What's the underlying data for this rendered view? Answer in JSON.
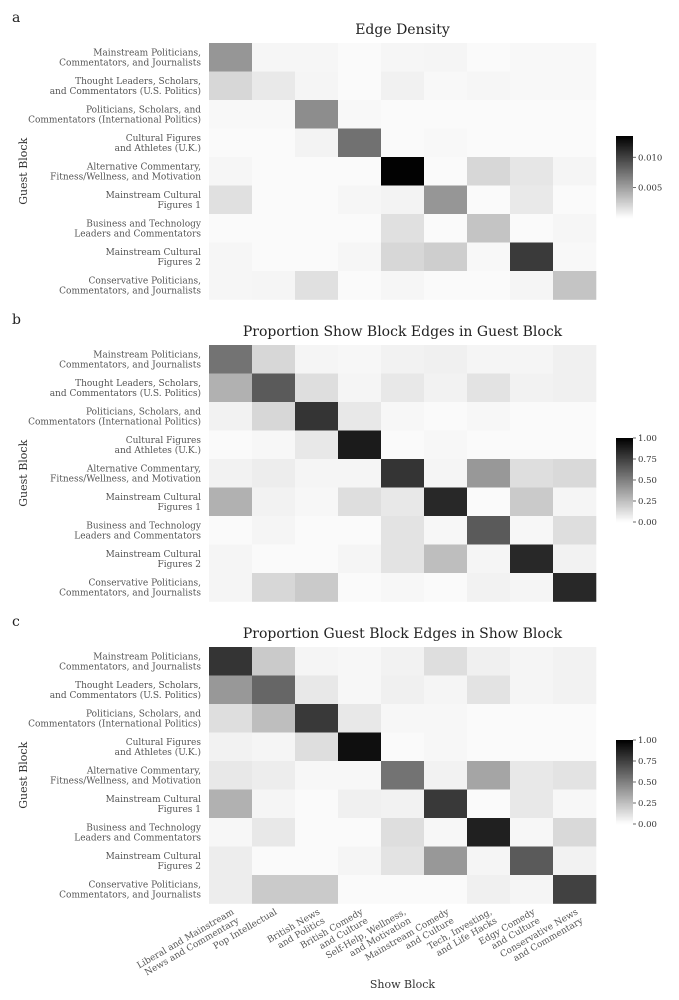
{
  "shared": {
    "row_labels": [
      [
        "Mainstream Politicians,",
        "Commentators, and Journalists"
      ],
      [
        "Thought Leaders, Scholars,",
        "and Commentators (U.S. Politics)"
      ],
      [
        "Politicians, Scholars, and",
        "Commentators (International Politics)"
      ],
      [
        "Cultural Figures",
        "and Athletes (U.K.)"
      ],
      [
        "Alternative Commentary,",
        "Fitness/Wellness, and Motivation"
      ],
      [
        "Mainstream Cultural",
        "Figures 1"
      ],
      [
        "Business and Technology",
        "Leaders and Commentators"
      ],
      [
        "Mainstream Cultural",
        "Figures 2"
      ],
      [
        "Conservative Politicians,",
        "Commentators, and Journalists"
      ]
    ],
    "col_labels": [
      [
        "Liberal and Mainstream",
        "News and Commentary"
      ],
      [
        "Pop Intellectual"
      ],
      [
        "British News",
        "and Politics"
      ],
      [
        "British Comedy",
        "and Culture"
      ],
      [
        "Self-Help, Wellness,",
        "and Motivation"
      ],
      [
        "Mainstream Comedy",
        "and Culture"
      ],
      [
        "Tech, Investing,",
        "and Life Hacks"
      ],
      [
        "Edgy Comedy",
        "and Culture"
      ],
      [
        "Conservative News",
        "and Commentary"
      ]
    ],
    "y_axis_title": "Guest Block",
    "x_axis_title": "Show Block"
  },
  "chart_data": [
    {
      "type": "heatmap",
      "panel": "a",
      "title": "Edge Density",
      "colorbar": {
        "min": 0,
        "max": 0.0135,
        "ticks": [
          "0.005",
          "0.010"
        ],
        "tick_values": [
          0.005,
          0.01
        ]
      },
      "values": [
        [
          0.0055,
          0.0003,
          0.0003,
          0.0001,
          0.0003,
          0.0004,
          0.0001,
          0.0002,
          0.0002
        ],
        [
          0.002,
          0.001,
          0.0004,
          0.0001,
          0.0006,
          0.0002,
          0.0003,
          0.0002,
          0.0002
        ],
        [
          0.0002,
          0.0002,
          0.006,
          0.0002,
          0.0001,
          0.0001,
          0.0001,
          0.0001,
          0.0001
        ],
        [
          0.0001,
          0.0001,
          0.0005,
          0.0075,
          0.0001,
          0.0002,
          0.0001,
          0.0001,
          0.0001
        ],
        [
          0.0003,
          0.0001,
          0.0001,
          0.0001,
          0.0135,
          0.0001,
          0.002,
          0.0012,
          0.0004
        ],
        [
          0.0015,
          0.0001,
          0.0001,
          0.0003,
          0.0005,
          0.0055,
          0.0001,
          0.001,
          0.0001
        ],
        [
          0.0001,
          0.0001,
          0.0001,
          0.0001,
          0.0015,
          0.0001,
          0.003,
          0.0001,
          0.0003
        ],
        [
          0.0003,
          0.0001,
          0.0001,
          0.0003,
          0.002,
          0.0025,
          0.0002,
          0.0105,
          0.0002
        ],
        [
          0.0003,
          0.0004,
          0.0015,
          0.0001,
          0.0003,
          0.0001,
          0.0001,
          0.0004,
          0.003
        ]
      ]
    },
    {
      "type": "heatmap",
      "panel": "b",
      "title": "Proportion Show Block Edges in Guest Block",
      "colorbar": {
        "min": 0,
        "max": 1,
        "ticks": [
          "0.00",
          "0.25",
          "0.50",
          "0.75",
          "1.00"
        ],
        "tick_values": [
          0,
          0.25,
          0.5,
          0.75,
          1.0
        ]
      },
      "values": [
        [
          0.55,
          0.15,
          0.03,
          0.02,
          0.04,
          0.05,
          0.03,
          0.03,
          0.05
        ],
        [
          0.3,
          0.65,
          0.12,
          0.03,
          0.08,
          0.04,
          0.1,
          0.04,
          0.05
        ],
        [
          0.04,
          0.15,
          0.8,
          0.08,
          0.02,
          0.01,
          0.02,
          0.01,
          0.01
        ],
        [
          0.01,
          0.02,
          0.08,
          0.9,
          0.01,
          0.02,
          0.01,
          0.01,
          0.01
        ],
        [
          0.04,
          0.06,
          0.03,
          0.03,
          0.8,
          0.03,
          0.4,
          0.12,
          0.14
        ],
        [
          0.3,
          0.04,
          0.02,
          0.12,
          0.08,
          0.85,
          0.01,
          0.2,
          0.03
        ],
        [
          0.01,
          0.03,
          0.01,
          0.01,
          0.1,
          0.02,
          0.65,
          0.02,
          0.12
        ],
        [
          0.03,
          0.01,
          0.01,
          0.03,
          0.1,
          0.25,
          0.03,
          0.85,
          0.04
        ],
        [
          0.03,
          0.15,
          0.2,
          0.01,
          0.02,
          0.01,
          0.04,
          0.03,
          0.85
        ]
      ]
    },
    {
      "type": "heatmap",
      "panel": "c",
      "title": "Proportion Guest Block Edges in Show Block",
      "colorbar": {
        "min": 0,
        "max": 1,
        "ticks": [
          "0.00",
          "0.25",
          "0.50",
          "0.75",
          "1.00"
        ],
        "tick_values": [
          0,
          0.25,
          0.5,
          0.75,
          1.0
        ]
      },
      "values": [
        [
          0.8,
          0.2,
          0.03,
          0.02,
          0.04,
          0.12,
          0.05,
          0.03,
          0.04
        ],
        [
          0.4,
          0.6,
          0.08,
          0.02,
          0.05,
          0.03,
          0.1,
          0.03,
          0.04
        ],
        [
          0.12,
          0.25,
          0.78,
          0.08,
          0.02,
          0.02,
          0.01,
          0.01,
          0.01
        ],
        [
          0.04,
          0.03,
          0.12,
          0.95,
          0.01,
          0.02,
          0.01,
          0.01,
          0.01
        ],
        [
          0.08,
          0.06,
          0.02,
          0.02,
          0.55,
          0.04,
          0.35,
          0.08,
          0.1
        ],
        [
          0.3,
          0.03,
          0.01,
          0.05,
          0.04,
          0.78,
          0.01,
          0.08,
          0.02
        ],
        [
          0.02,
          0.08,
          0.01,
          0.01,
          0.12,
          0.02,
          0.88,
          0.02,
          0.14
        ],
        [
          0.06,
          0.01,
          0.01,
          0.03,
          0.1,
          0.4,
          0.03,
          0.65,
          0.04
        ],
        [
          0.06,
          0.2,
          0.2,
          0.01,
          0.01,
          0.01,
          0.05,
          0.03,
          0.75
        ]
      ]
    }
  ]
}
